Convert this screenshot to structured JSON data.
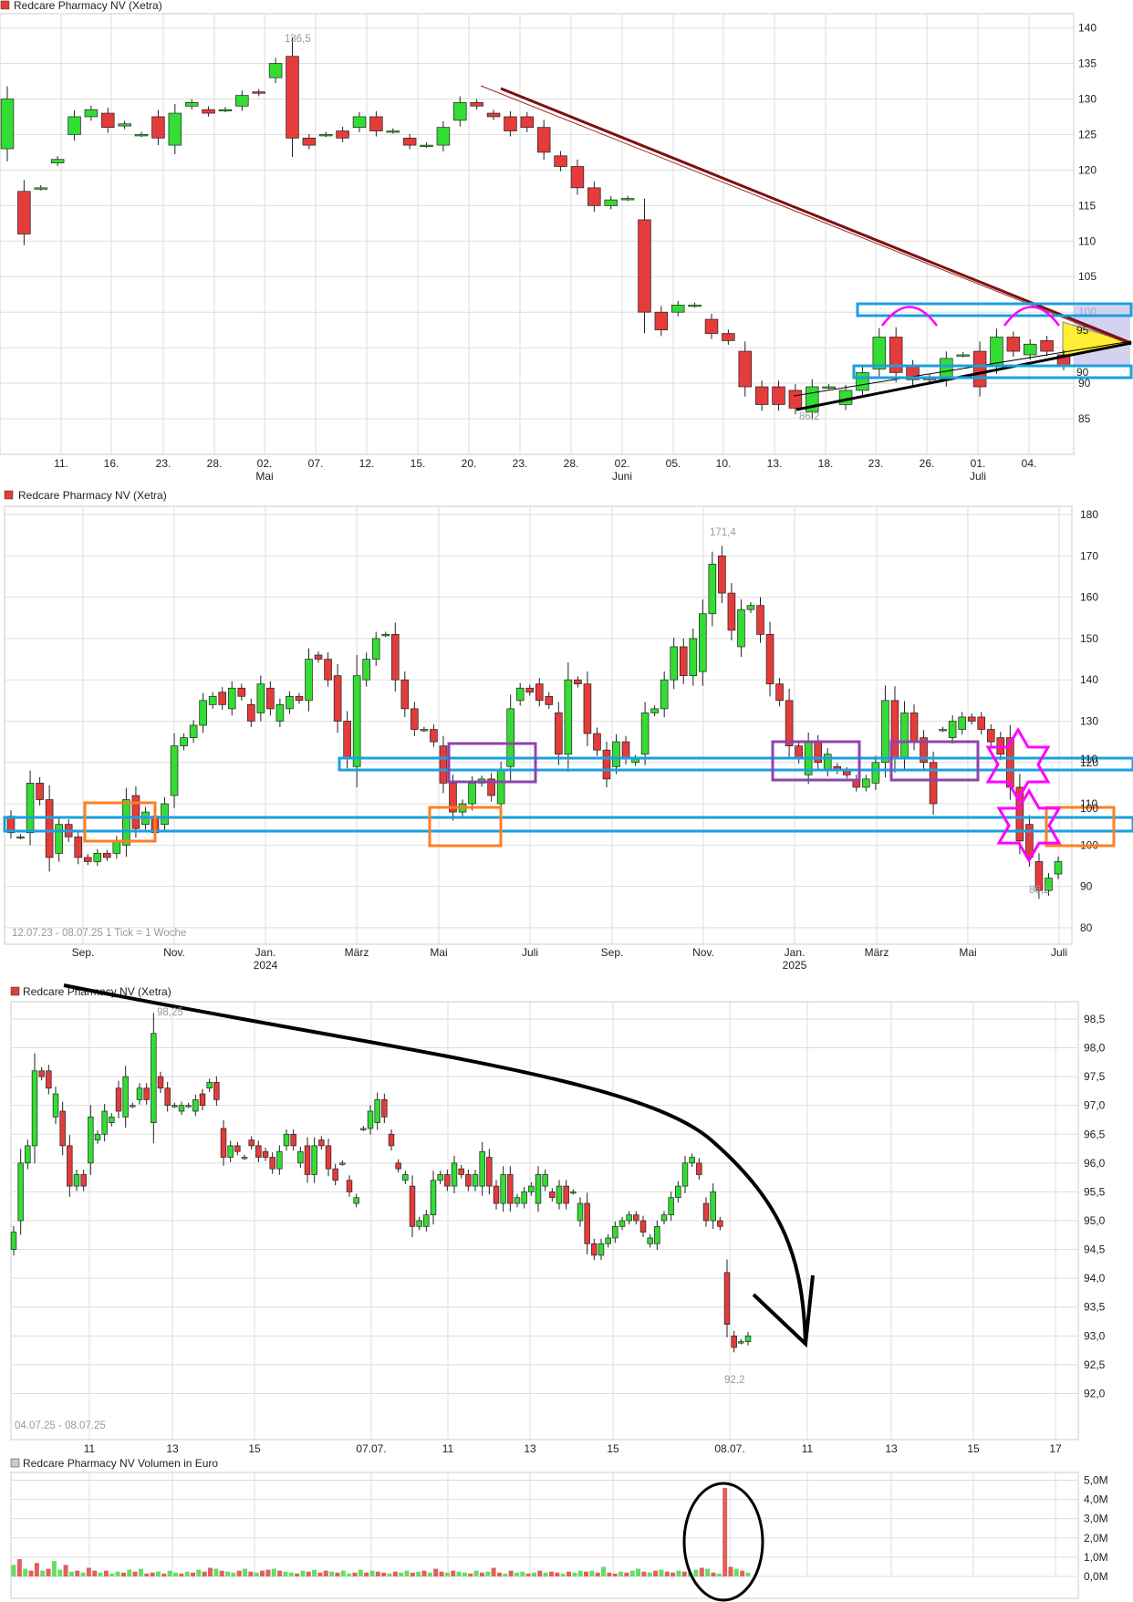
{
  "chart_data": [
    {
      "type": "candlestick",
      "title": "Redcare Pharmacy NV (Xetra)",
      "ylim": [
        80,
        142
      ],
      "ytick_labels": [
        "140",
        "135",
        "130",
        "125",
        "120",
        "115",
        "110",
        "105",
        "100",
        "95",
        "90",
        "85"
      ],
      "yticks": [
        140,
        135,
        130,
        125,
        120,
        115,
        110,
        105,
        100,
        95,
        90,
        85
      ],
      "xtick_labels": [
        "11.",
        "16.",
        "23.",
        "28.",
        "02.\nMai",
        "07.",
        "12.",
        "15.",
        "20.",
        "23.",
        "28.",
        "02.\nJuni",
        "05.",
        "10.",
        "13.",
        "18.",
        "23.",
        "26.",
        "01.\nJuli",
        "04."
      ],
      "grid": true,
      "annotations": {
        "high": "136,5",
        "low": "86,2",
        "level_labels": [
          "95",
          "90"
        ]
      },
      "candles": [
        [
          123,
          130
        ],
        [
          117,
          111
        ],
        [
          117.5,
          117.5
        ],
        [
          121,
          121.5
        ],
        [
          125,
          127.5
        ],
        [
          127.5,
          128.5
        ],
        [
          128,
          126
        ],
        [
          126.2,
          126.5
        ],
        [
          125,
          125
        ],
        [
          127.5,
          124.5
        ],
        [
          123.5,
          128
        ],
        [
          129,
          129.5
        ],
        [
          128.5,
          128
        ],
        [
          128.5,
          128.5
        ],
        [
          129,
          130.5
        ],
        [
          131,
          130.8
        ],
        [
          133,
          135
        ],
        [
          136,
          124.5
        ],
        [
          124.5,
          123.5
        ],
        [
          125,
          125
        ],
        [
          125.5,
          124.5
        ],
        [
          126,
          127.5
        ],
        [
          127.5,
          125.5
        ],
        [
          125.5,
          125.5
        ],
        [
          124.5,
          123.5
        ],
        [
          123.5,
          123.5
        ],
        [
          123.5,
          126
        ],
        [
          127,
          129.5
        ],
        [
          129.5,
          129
        ],
        [
          128,
          127.5
        ],
        [
          127.5,
          125.5
        ],
        [
          127.5,
          126
        ],
        [
          126,
          122.5
        ],
        [
          122,
          120.5
        ],
        [
          120.5,
          117.5
        ],
        [
          117.5,
          115
        ],
        [
          115,
          115.8
        ],
        [
          116,
          116
        ],
        [
          113,
          100
        ],
        [
          100,
          97.5
        ],
        [
          100,
          101
        ],
        [
          101,
          101
        ],
        [
          99,
          97
        ],
        [
          97,
          96
        ],
        [
          94.5,
          89.5
        ],
        [
          89.5,
          87
        ],
        [
          89.5,
          87
        ],
        [
          89,
          86.5
        ],
        [
          86,
          89.5
        ],
        [
          89.5,
          89.5
        ],
        [
          87,
          89
        ],
        [
          89,
          91.5
        ],
        [
          92,
          96.5
        ],
        [
          96.5,
          91.5
        ],
        [
          92.5,
          90.5
        ],
        [
          90.8,
          90.5
        ],
        [
          90.5,
          93.5
        ],
        [
          94,
          94
        ],
        [
          94.5,
          89.5
        ],
        [
          92.5,
          96.5
        ],
        [
          96.5,
          94.5
        ],
        [
          94,
          95.5
        ],
        [
          96,
          94.5
        ],
        [
          94,
          92.5
        ]
      ]
    },
    {
      "type": "candlestick",
      "title": "Redcare Pharmacy NV (Xetra)",
      "subtitle": "12.07.23 - 08.07.25   1 Tick = 1 Woche",
      "ylim": [
        76,
        182
      ],
      "ytick_labels": [
        "180",
        "170",
        "160",
        "150",
        "140",
        "130",
        "120",
        "110",
        "100",
        "90",
        "80"
      ],
      "yticks": [
        180,
        170,
        160,
        150,
        140,
        130,
        120,
        110,
        100,
        90,
        80
      ],
      "xtick_labels": [
        "Sep.",
        "Nov.",
        "Jan.\n2024",
        "März",
        "Mai",
        "Juli",
        "Sep.",
        "Nov.",
        "Jan.\n2025",
        "März",
        "Mai",
        "Juli"
      ],
      "grid": true,
      "annotations": {
        "high": "171,4",
        "low": "86,2",
        "level_labels": [
          "110",
          "100",
          "90"
        ]
      },
      "candles": [
        [
          107,
          103
        ],
        [
          102,
          102
        ],
        [
          103,
          115
        ],
        [
          115,
          111
        ],
        [
          111,
          97
        ],
        [
          98,
          105
        ],
        [
          105,
          102
        ],
        [
          102,
          97
        ],
        [
          97,
          96
        ],
        [
          96,
          98
        ],
        [
          98,
          97
        ],
        [
          98,
          101
        ],
        [
          100,
          111
        ],
        [
          112,
          104
        ],
        [
          105,
          108
        ],
        [
          107,
          103
        ],
        [
          105,
          110
        ],
        [
          112,
          124
        ],
        [
          124,
          126
        ],
        [
          126,
          129
        ],
        [
          129,
          135
        ],
        [
          134,
          136
        ],
        [
          137,
          134
        ],
        [
          133,
          138
        ],
        [
          138,
          136
        ],
        [
          134,
          130
        ],
        [
          132,
          139
        ],
        [
          138,
          133
        ],
        [
          130,
          134
        ],
        [
          133,
          136
        ],
        [
          136,
          135
        ],
        [
          135,
          145
        ],
        [
          146,
          145
        ],
        [
          145,
          140
        ],
        [
          141,
          130
        ],
        [
          130,
          121
        ],
        [
          119,
          141
        ],
        [
          140,
          145
        ],
        [
          145,
          150
        ],
        [
          151,
          151
        ],
        [
          151,
          140
        ],
        [
          140,
          133
        ],
        [
          133,
          128
        ],
        [
          128,
          128
        ],
        [
          128,
          125
        ],
        [
          124,
          115
        ],
        [
          115,
          108
        ],
        [
          108,
          110
        ],
        [
          110,
          115
        ],
        [
          115,
          116
        ],
        [
          116,
          112
        ],
        [
          110,
          118
        ],
        [
          119,
          133
        ],
        [
          135,
          138
        ],
        [
          138,
          137
        ],
        [
          139,
          135
        ],
        [
          136,
          134
        ],
        [
          132,
          122
        ],
        [
          122,
          140
        ],
        [
          140,
          139
        ],
        [
          139,
          127
        ],
        [
          127,
          123
        ],
        [
          123,
          116
        ],
        [
          119,
          125
        ],
        [
          125,
          121
        ],
        [
          120,
          121
        ],
        [
          122,
          132
        ],
        [
          132,
          133
        ],
        [
          133,
          140
        ],
        [
          140,
          148
        ],
        [
          148,
          141
        ],
        [
          141,
          150
        ],
        [
          142,
          156
        ],
        [
          156,
          168
        ],
        [
          170,
          161
        ],
        [
          161,
          152
        ],
        [
          148,
          157
        ],
        [
          157,
          158
        ],
        [
          158,
          151
        ],
        [
          151,
          139
        ],
        [
          139,
          135
        ],
        [
          135,
          124
        ],
        [
          124,
          121
        ],
        [
          117,
          125
        ],
        [
          125,
          120
        ],
        [
          118,
          122
        ],
        [
          119,
          118
        ],
        [
          118,
          117
        ],
        [
          116,
          114
        ],
        [
          114,
          116
        ],
        [
          115,
          120
        ],
        [
          120,
          135
        ],
        [
          135,
          121
        ],
        [
          121,
          132
        ],
        [
          132,
          125
        ],
        [
          126,
          120
        ],
        [
          120,
          110
        ],
        [
          128,
          128
        ],
        [
          126,
          130
        ],
        [
          128,
          131
        ],
        [
          131,
          130
        ],
        [
          131,
          128
        ],
        [
          128,
          125
        ],
        [
          126,
          122
        ],
        [
          126,
          114
        ],
        [
          114,
          101
        ],
        [
          105,
          97
        ],
        [
          96,
          89
        ],
        [
          89,
          92
        ],
        [
          93,
          96
        ]
      ]
    },
    {
      "type": "candlestick",
      "title": "Redcare Pharmacy NV (Xetra)",
      "subtitle": "04.07.25 - 08.07.25",
      "ylim": [
        91.2,
        98.8
      ],
      "ytick_labels": [
        "98,5",
        "98,0",
        "97,5",
        "97,0",
        "96,5",
        "96,0",
        "95,5",
        "95,0",
        "94,5",
        "94,0",
        "93,5",
        "93,0",
        "92,5",
        "92,0"
      ],
      "yticks": [
        98.5,
        98,
        97.5,
        97,
        96.5,
        96,
        95.5,
        95,
        94.5,
        94,
        93.5,
        93,
        92.5,
        92
      ],
      "xtick_labels": [
        "11",
        "13",
        "15",
        "07.07.",
        "11",
        "13",
        "15",
        "08.07.",
        "11",
        "13",
        "15",
        "17"
      ],
      "grid": true,
      "annotations": {
        "high": "98,25",
        "low": "92,2"
      },
      "candles": [
        [
          94.5,
          94.8
        ],
        [
          95,
          96
        ],
        [
          96,
          96.3
        ],
        [
          96.3,
          97.6
        ],
        [
          97.6,
          97.5
        ],
        [
          97.6,
          97.3
        ],
        [
          96.8,
          97.2
        ],
        [
          96.9,
          96.3
        ],
        [
          96.3,
          95.6
        ],
        [
          95.6,
          95.8
        ],
        [
          95.8,
          95.6
        ],
        [
          96,
          96.8
        ],
        [
          96.4,
          96.5
        ],
        [
          96.5,
          96.9
        ],
        [
          96.7,
          96.8
        ],
        [
          97.3,
          96.9
        ],
        [
          96.8,
          97.5
        ],
        [
          97,
          97
        ],
        [
          97.1,
          97.3
        ],
        [
          97.3,
          97.1
        ],
        [
          96.7,
          98.25
        ],
        [
          97.5,
          97.3
        ],
        [
          97.3,
          97
        ],
        [
          97,
          97
        ],
        [
          96.9,
          97
        ],
        [
          97,
          97
        ],
        [
          96.9,
          97.1
        ],
        [
          97.2,
          97
        ],
        [
          97.3,
          97.4
        ],
        [
          97.4,
          97.1
        ],
        [
          96.6,
          96.1
        ],
        [
          96.1,
          96.3
        ],
        [
          96.3,
          96.2
        ],
        [
          96.1,
          96.1
        ],
        [
          96.4,
          96.3
        ],
        [
          96.3,
          96.1
        ],
        [
          96.2,
          96.1
        ],
        [
          96.1,
          95.9
        ],
        [
          95.9,
          96.2
        ],
        [
          96.3,
          96.5
        ],
        [
          96.5,
          96.3
        ],
        [
          96,
          96.2
        ],
        [
          96.3,
          95.8
        ],
        [
          95.8,
          96.3
        ],
        [
          96.4,
          96.3
        ],
        [
          96.3,
          95.9
        ],
        [
          95.9,
          95.7
        ],
        [
          96,
          96
        ],
        [
          95.7,
          95.5
        ],
        [
          95.3,
          95.4
        ],
        [
          96.6,
          96.6
        ],
        [
          96.6,
          96.9
        ],
        [
          96.7,
          97.1
        ],
        [
          97.1,
          96.8
        ],
        [
          96.5,
          96.3
        ],
        [
          96,
          95.9
        ],
        [
          95.7,
          95.8
        ],
        [
          95.6,
          94.9
        ],
        [
          94.9,
          95
        ],
        [
          94.9,
          95.1
        ],
        [
          95.1,
          95.7
        ],
        [
          95.7,
          95.8
        ],
        [
          95.8,
          95.6
        ],
        [
          95.6,
          96
        ],
        [
          95.9,
          95.8
        ],
        [
          95.8,
          95.6
        ],
        [
          95.6,
          95.8
        ],
        [
          95.6,
          96.2
        ],
        [
          96.1,
          95.6
        ],
        [
          95.6,
          95.3
        ],
        [
          95.3,
          95.8
        ],
        [
          95.8,
          95.3
        ],
        [
          95.3,
          95.4
        ],
        [
          95.3,
          95.5
        ],
        [
          95.5,
          95.6
        ],
        [
          95.3,
          95.8
        ],
        [
          95.6,
          95.8
        ],
        [
          95.5,
          95.4
        ],
        [
          95.3,
          95.6
        ],
        [
          95.6,
          95.3
        ],
        [
          95.5,
          95.5
        ],
        [
          95,
          95.3
        ],
        [
          95.3,
          94.6
        ],
        [
          94.6,
          94.4
        ],
        [
          94.4,
          94.6
        ],
        [
          94.6,
          94.7
        ],
        [
          94.7,
          94.9
        ],
        [
          94.9,
          95
        ],
        [
          95,
          95.1
        ],
        [
          95.1,
          95
        ],
        [
          95,
          94.8
        ],
        [
          94.6,
          94.7
        ],
        [
          94.6,
          94.9
        ],
        [
          95,
          95.1
        ],
        [
          95.1,
          95.4
        ],
        [
          95.4,
          95.6
        ],
        [
          95.6,
          96
        ],
        [
          96,
          96.1
        ],
        [
          96,
          95.8
        ],
        [
          95.3,
          95
        ],
        [
          95,
          95.5
        ],
        [
          95,
          94.9
        ],
        [
          94.1,
          93.2
        ],
        [
          93,
          92.8
        ],
        [
          92.9,
          92.9
        ],
        [
          92.9,
          93
        ]
      ]
    },
    {
      "type": "bar",
      "title": "Redcare Pharmacy NV Volumen in Euro",
      "ylim": [
        0,
        5.4
      ],
      "ytick_labels": [
        "5,0M",
        "4,0M",
        "3,0M",
        "2,0M",
        "1,0M",
        "0,0M"
      ],
      "yticks": [
        5,
        4,
        3,
        2,
        1,
        0
      ],
      "grid": true,
      "values": [
        0.6,
        0.9,
        0.4,
        0.3,
        0.7,
        0.3,
        0.4,
        0.8,
        0.35,
        0.6,
        0.25,
        0.3,
        0.2,
        0.45,
        0.3,
        0.2,
        0.3,
        0.15,
        0.25,
        0.2,
        0.35,
        0.25,
        0.4,
        0.15,
        0.2,
        0.25,
        0.15,
        0.3,
        0.2,
        0.15,
        0.25,
        0.2,
        0.35,
        0.25,
        0.45,
        0.4,
        0.3,
        0.25,
        0.2,
        0.3,
        0.4,
        0.25,
        0.2,
        0.3,
        0.35,
        0.4,
        0.3,
        0.25,
        0.2,
        0.15,
        0.3,
        0.25,
        0.35,
        0.2,
        0.3,
        0.25,
        0.2,
        0.3,
        0.15,
        0.2,
        0.35,
        0.2,
        0.3,
        0.25,
        0.2,
        0.15,
        0.25,
        0.2,
        0.3,
        0.2,
        0.25,
        0.3,
        0.2,
        0.4,
        0.25,
        0.2,
        0.3,
        0.25,
        0.2,
        0.15,
        0.3,
        0.2,
        0.25,
        0.45,
        0.2,
        0.15,
        0.3,
        0.2,
        0.25,
        0.15,
        0.2,
        0.3,
        0.2,
        0.25,
        0.2,
        0.15,
        0.25,
        0.2,
        0.3,
        0.25,
        0.3,
        0.2,
        0.5,
        0.2,
        0.15,
        0.25,
        0.2,
        0.3,
        0.4,
        0.25,
        0.2,
        0.3,
        0.35,
        0.25,
        0.2,
        0.3,
        0.25,
        0.2,
        0.35,
        0.45,
        0.4,
        0.2,
        0.15,
        4.6,
        0.5,
        0.4,
        0.3,
        0.2
      ]
    }
  ],
  "colors": {
    "up": "#33dd33",
    "down": "#e53b3b",
    "grid": "#dddddd",
    "trend_dark": "#7b1010",
    "channel_blue": "#1aa0e0",
    "magenta": "#ff00ff",
    "orange": "#ff7f1e",
    "purple": "#8e44ad",
    "triangle_fill": "#ffee33",
    "shade": "#c8c8ee",
    "black": "#000000"
  }
}
